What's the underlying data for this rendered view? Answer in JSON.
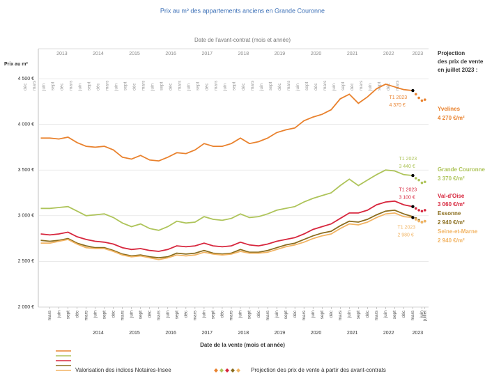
{
  "chart_data": {
    "type": "line",
    "title": "Prix au m² des appartements anciens en Grande Couronne",
    "top_axis_label": "Date de l'avant-contrat (mois et année)",
    "y_label": "Prix au m²",
    "x_label": "Date de la vente (mois et année)",
    "projection_title": [
      "Projection",
      "des prix de vente",
      "en juillet 2023 :"
    ],
    "legend_line_text": "Valorisation des indices Notaires-Insee",
    "legend_projection_text": "Projection des prix de vente à partir des avant-contrats",
    "xlim": [
      2012.85,
      2023.6
    ],
    "ylim": [
      2000,
      4500
    ],
    "yticks": [
      {
        "value": 2000,
        "label": "2 000 €"
      },
      {
        "value": 2500,
        "label": "2 500 €"
      },
      {
        "value": 3000,
        "label": "3 000 €"
      },
      {
        "value": 3500,
        "label": "3 500 €"
      },
      {
        "value": 4000,
        "label": "4 000 €"
      },
      {
        "value": 4500,
        "label": "4 500 €"
      }
    ],
    "grid": true,
    "xticks": [
      {
        "value": 2013.167,
        "label": "mars"
      },
      {
        "value": 2013.417,
        "label": "juin"
      },
      {
        "value": 2013.667,
        "label": "sept"
      },
      {
        "value": 2013.917,
        "label": "déc"
      },
      {
        "value": 2014.167,
        "label": "mars"
      },
      {
        "value": 2014.417,
        "label": "juin"
      },
      {
        "value": 2014.667,
        "label": "sept"
      },
      {
        "value": 2014.917,
        "label": "déc"
      },
      {
        "value": 2015.167,
        "label": "mars"
      },
      {
        "value": 2015.417,
        "label": "juin"
      },
      {
        "value": 2015.667,
        "label": "sept"
      },
      {
        "value": 2015.917,
        "label": "déc"
      },
      {
        "value": 2016.167,
        "label": "mars"
      },
      {
        "value": 2016.417,
        "label": "juin"
      },
      {
        "value": 2016.667,
        "label": "sept"
      },
      {
        "value": 2016.917,
        "label": "déc"
      },
      {
        "value": 2017.167,
        "label": "mars"
      },
      {
        "value": 2017.417,
        "label": "juin"
      },
      {
        "value": 2017.667,
        "label": "sept"
      },
      {
        "value": 2017.917,
        "label": "déc"
      },
      {
        "value": 2018.167,
        "label": "mars"
      },
      {
        "value": 2018.417,
        "label": "juin"
      },
      {
        "value": 2018.667,
        "label": "sept"
      },
      {
        "value": 2018.917,
        "label": "déc"
      },
      {
        "value": 2019.167,
        "label": "mars"
      },
      {
        "value": 2019.417,
        "label": "juin"
      },
      {
        "value": 2019.667,
        "label": "sept"
      },
      {
        "value": 2019.917,
        "label": "déc"
      },
      {
        "value": 2020.167,
        "label": "mars"
      },
      {
        "value": 2020.417,
        "label": "juin"
      },
      {
        "value": 2020.667,
        "label": "sept"
      },
      {
        "value": 2020.917,
        "label": "déc"
      },
      {
        "value": 2021.167,
        "label": "mars"
      },
      {
        "value": 2021.417,
        "label": "juin"
      },
      {
        "value": 2021.667,
        "label": "sept"
      },
      {
        "value": 2021.917,
        "label": "déc"
      },
      {
        "value": 2022.167,
        "label": "mars"
      },
      {
        "value": 2022.417,
        "label": "juin"
      },
      {
        "value": 2022.667,
        "label": "sept"
      },
      {
        "value": 2022.917,
        "label": "déc"
      },
      {
        "value": 2023.167,
        "label": "mars"
      },
      {
        "value": 2023.417,
        "label": "juin"
      },
      {
        "value": 2023.5,
        "label": "juillet"
      }
    ],
    "xyears": [
      {
        "value": 2014.5,
        "label": "2014"
      },
      {
        "value": 2015.5,
        "label": "2015"
      },
      {
        "value": 2016.5,
        "label": "2016"
      },
      {
        "value": 2017.5,
        "label": "2017"
      },
      {
        "value": 2018.5,
        "label": "2018"
      },
      {
        "value": 2019.5,
        "label": "2019"
      },
      {
        "value": 2020.5,
        "label": "2020"
      },
      {
        "value": 2021.5,
        "label": "2021"
      },
      {
        "value": 2022.5,
        "label": "2022"
      },
      {
        "value": 2023.3,
        "label": "2023"
      }
    ],
    "x2ticks": [
      {
        "value": 2012.917,
        "label": "déc"
      },
      {
        "value": 2013.167,
        "label": "mars"
      },
      {
        "value": 2013.417,
        "label": "juin"
      },
      {
        "value": 2013.667,
        "label": "sept"
      },
      {
        "value": 2013.917,
        "label": "déc"
      },
      {
        "value": 2014.167,
        "label": "mars"
      },
      {
        "value": 2014.417,
        "label": "juin"
      },
      {
        "value": 2014.667,
        "label": "sept"
      },
      {
        "value": 2014.917,
        "label": "déc"
      },
      {
        "value": 2015.167,
        "label": "mars"
      },
      {
        "value": 2015.417,
        "label": "juin"
      },
      {
        "value": 2015.667,
        "label": "sept"
      },
      {
        "value": 2015.917,
        "label": "déc"
      },
      {
        "value": 2016.167,
        "label": "mars"
      },
      {
        "value": 2016.417,
        "label": "juin"
      },
      {
        "value": 2016.667,
        "label": "sept"
      },
      {
        "value": 2016.917,
        "label": "déc"
      },
      {
        "value": 2017.167,
        "label": "mars"
      },
      {
        "value": 2017.417,
        "label": "juin"
      },
      {
        "value": 2017.667,
        "label": "sept"
      },
      {
        "value": 2017.917,
        "label": "déc"
      },
      {
        "value": 2018.167,
        "label": "mars"
      },
      {
        "value": 2018.417,
        "label": "juin"
      },
      {
        "value": 2018.667,
        "label": "sept"
      },
      {
        "value": 2018.917,
        "label": "déc"
      },
      {
        "value": 2019.167,
        "label": "mars"
      },
      {
        "value": 2019.417,
        "label": "juin"
      },
      {
        "value": 2019.667,
        "label": "sept"
      },
      {
        "value": 2019.917,
        "label": "déc"
      },
      {
        "value": 2020.167,
        "label": "mars"
      },
      {
        "value": 2020.417,
        "label": "juin"
      },
      {
        "value": 2020.667,
        "label": "sept"
      },
      {
        "value": 2020.917,
        "label": "déc"
      },
      {
        "value": 2021.167,
        "label": "mars"
      },
      {
        "value": 2021.417,
        "label": "juin"
      },
      {
        "value": 2021.667,
        "label": "sept"
      },
      {
        "value": 2021.917,
        "label": "déc"
      },
      {
        "value": 2022.167,
        "label": "mars"
      },
      {
        "value": 2022.417,
        "label": "juin"
      },
      {
        "value": 2022.667,
        "label": "sept"
      },
      {
        "value": 2022.917,
        "label": "déc"
      },
      {
        "value": 2023.167,
        "label": "mars"
      }
    ],
    "x2years": [
      {
        "value": 2013.5,
        "label": "2013"
      },
      {
        "value": 2014.5,
        "label": "2014"
      },
      {
        "value": 2015.5,
        "label": "2015"
      },
      {
        "value": 2016.5,
        "label": "2016"
      },
      {
        "value": 2017.5,
        "label": "2017"
      },
      {
        "value": 2018.5,
        "label": "2018"
      },
      {
        "value": 2019.5,
        "label": "2019"
      },
      {
        "value": 2020.5,
        "label": "2020"
      },
      {
        "value": 2021.5,
        "label": "2021"
      },
      {
        "value": 2022.5,
        "label": "2022"
      },
      {
        "value": 2023.3,
        "label": "2023"
      }
    ],
    "x": [
      2012.917,
      2013.167,
      2013.417,
      2013.667,
      2013.917,
      2014.167,
      2014.417,
      2014.667,
      2014.917,
      2015.167,
      2015.417,
      2015.667,
      2015.917,
      2016.167,
      2016.417,
      2016.667,
      2016.917,
      2017.167,
      2017.417,
      2017.667,
      2017.917,
      2018.167,
      2018.417,
      2018.667,
      2018.917,
      2019.167,
      2019.417,
      2019.667,
      2019.917,
      2020.167,
      2020.417,
      2020.667,
      2020.917,
      2021.167,
      2021.417,
      2021.667,
      2021.917,
      2022.167,
      2022.417,
      2022.667,
      2022.917,
      2023.167
    ],
    "projection_x": [
      2023.25,
      2023.333,
      2023.417,
      2023.5
    ],
    "series": [
      {
        "name": "Yvelines",
        "color": "#e9822e",
        "values": [
          3850,
          3850,
          3840,
          3860,
          3800,
          3760,
          3750,
          3760,
          3720,
          3640,
          3620,
          3660,
          3610,
          3600,
          3640,
          3690,
          3680,
          3720,
          3790,
          3760,
          3760,
          3790,
          3850,
          3790,
          3810,
          3850,
          3910,
          3940,
          3960,
          4040,
          4080,
          4110,
          4160,
          4280,
          4330,
          4230,
          4300,
          4390,
          4440,
          4410,
          4380,
          4370
        ],
        "projection_values": [
          4330,
          4290,
          4260,
          4270
        ],
        "projection_label": "4 270 €/m²",
        "annotation": {
          "text": "T1 2023",
          "label": "4 370 €"
        }
      },
      {
        "name": "Grande Couronne",
        "color": "#aec45a",
        "values": [
          3080,
          3080,
          3090,
          3100,
          3050,
          3000,
          3010,
          3020,
          2980,
          2920,
          2880,
          2910,
          2860,
          2840,
          2880,
          2940,
          2920,
          2930,
          2990,
          2960,
          2950,
          2970,
          3020,
          2980,
          2990,
          3020,
          3060,
          3080,
          3100,
          3150,
          3190,
          3220,
          3250,
          3330,
          3400,
          3330,
          3390,
          3450,
          3500,
          3490,
          3450,
          3440
        ],
        "projection_values": [
          3410,
          3390,
          3360,
          3370
        ],
        "projection_label": "3 370 €/m²",
        "annotation": {
          "text": "T1 2023",
          "label": "3 440 €"
        }
      },
      {
        "name": "Val-d'Oise",
        "color": "#d7263d",
        "values": [
          2800,
          2790,
          2800,
          2820,
          2770,
          2740,
          2720,
          2710,
          2690,
          2650,
          2630,
          2640,
          2620,
          2610,
          2630,
          2670,
          2660,
          2670,
          2700,
          2670,
          2660,
          2670,
          2710,
          2680,
          2670,
          2690,
          2720,
          2740,
          2760,
          2800,
          2850,
          2880,
          2910,
          2970,
          3030,
          3030,
          3060,
          3120,
          3150,
          3160,
          3120,
          3100
        ],
        "projection_values": [
          3080,
          3060,
          3050,
          3060
        ],
        "projection_label": "3 060 €/m²",
        "annotation": {
          "text": "T1 2023",
          "label": "3 100 €"
        }
      },
      {
        "name": "Essonne",
        "color": "#8a6d1e",
        "values": [
          2730,
          2720,
          2730,
          2750,
          2700,
          2670,
          2650,
          2650,
          2620,
          2580,
          2560,
          2570,
          2550,
          2540,
          2550,
          2590,
          2580,
          2590,
          2620,
          2590,
          2580,
          2590,
          2630,
          2600,
          2600,
          2620,
          2650,
          2680,
          2700,
          2740,
          2780,
          2810,
          2830,
          2890,
          2940,
          2930,
          2960,
          3010,
          3050,
          3060,
          3020,
          2990
        ],
        "projection_values": [
          2970,
          2950,
          2930,
          2940
        ],
        "projection_label": "2 940 €/m²"
      },
      {
        "name": "Seine-et-Marne",
        "color": "#f2b463",
        "values": [
          2700,
          2700,
          2720,
          2740,
          2690,
          2650,
          2640,
          2640,
          2610,
          2570,
          2550,
          2560,
          2540,
          2520,
          2540,
          2570,
          2560,
          2570,
          2600,
          2580,
          2570,
          2580,
          2610,
          2590,
          2590,
          2600,
          2630,
          2660,
          2680,
          2710,
          2750,
          2780,
          2800,
          2860,
          2910,
          2900,
          2930,
          2980,
          3020,
          3030,
          2990,
          2980
        ],
        "projection_values": [
          2960,
          2940,
          2930,
          2940
        ],
        "projection_label": "2 940 €/m²",
        "annotation": {
          "text": "T1 2023",
          "label": "2 980 €"
        }
      }
    ]
  }
}
